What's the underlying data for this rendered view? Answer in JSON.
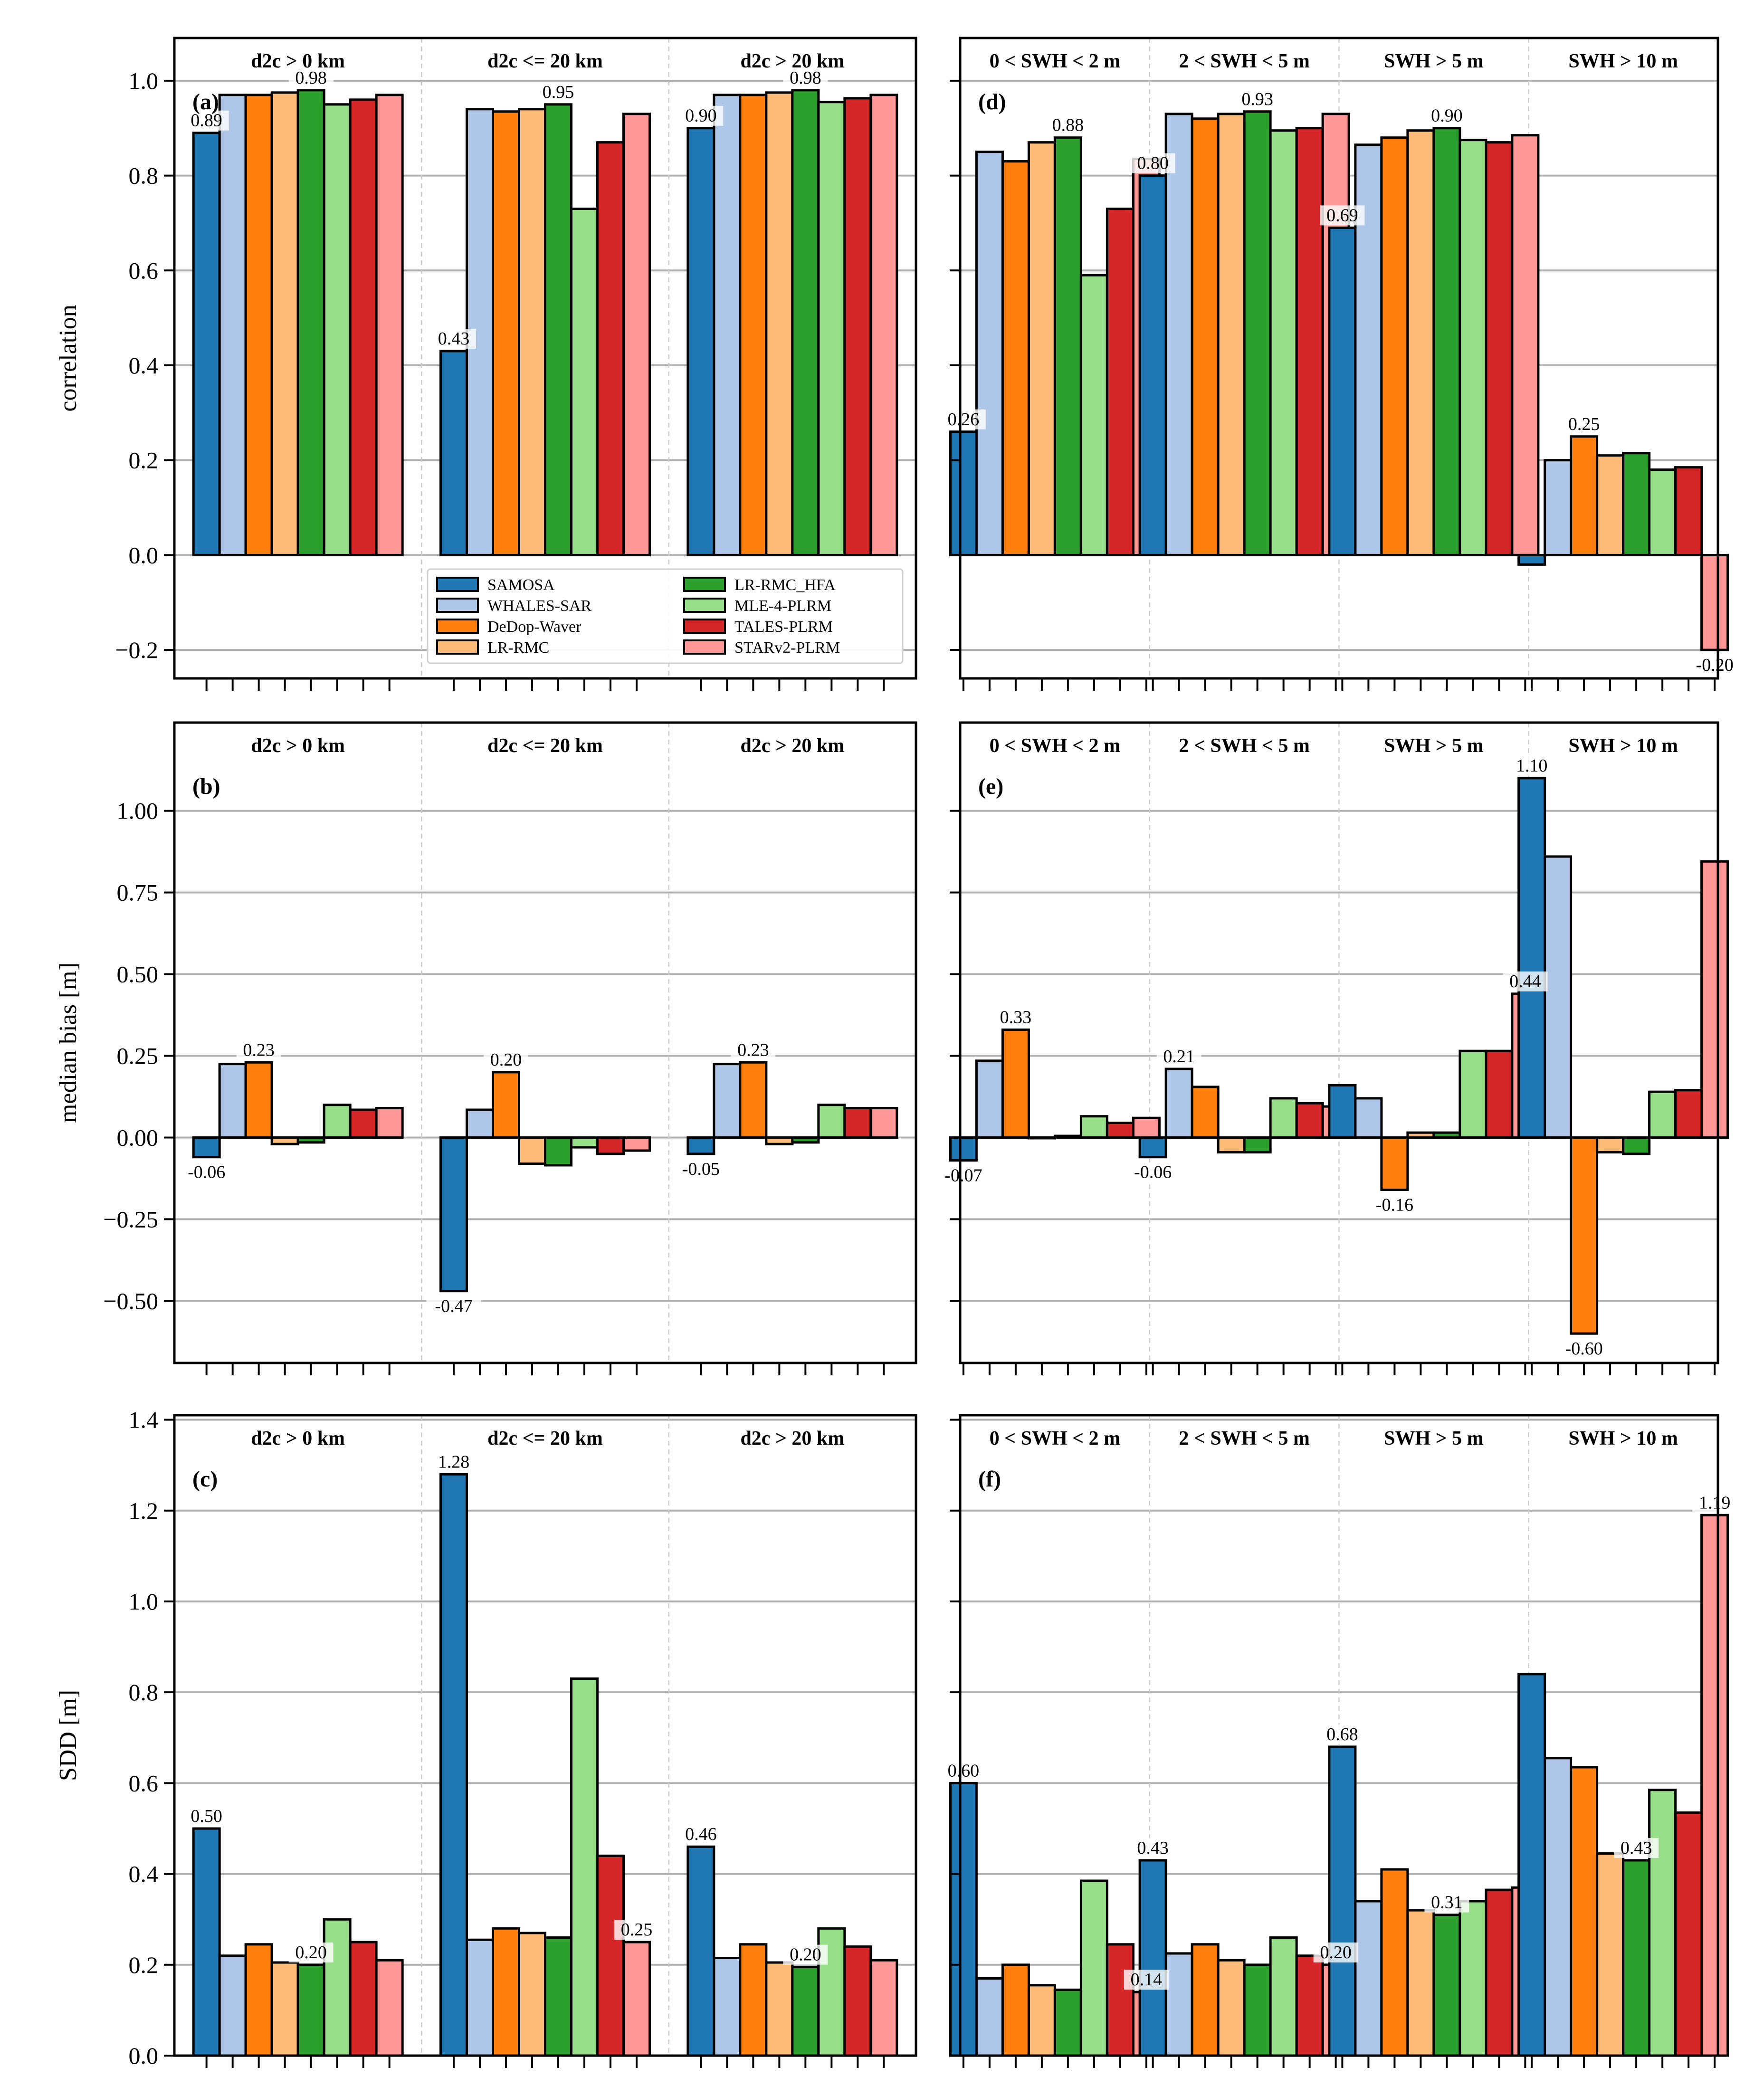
{
  "series_names": [
    "SAMOSA",
    "WHALES-SAR",
    "DeDop-Waver",
    "LR-RMC",
    "LR-RMC_HFA",
    "MLE-4-PLRM",
    "TALES-PLRM",
    "STARv2-PLRM"
  ],
  "series_colors": [
    "#1f77b4",
    "#aec7e8",
    "#ff7f0e",
    "#ffbb78",
    "#2ca02c",
    "#98df8a",
    "#d62728",
    "#ff9896"
  ],
  "chart_data": [
    {
      "id": "a",
      "type": "bar",
      "panel_label": "(a)",
      "ylabel": "correlation",
      "ylim": [
        -0.26,
        1.09
      ],
      "yticks": [
        -0.2,
        0,
        0.2,
        0.4,
        0.6,
        0.8,
        1.0
      ],
      "ytick_labels": [
        "−0.2",
        "0.0",
        "0.2",
        "0.4",
        "0.6",
        "0.8",
        "1.0"
      ],
      "categories": [
        "d2c > 0 km",
        "d2c <= 20 km",
        "d2c > 20 km"
      ],
      "values": [
        [
          0.89,
          0.97,
          0.97,
          0.975,
          0.98,
          0.95,
          0.96,
          0.97
        ],
        [
          0.43,
          0.94,
          0.935,
          0.94,
          0.95,
          0.73,
          0.87,
          0.93
        ],
        [
          0.9,
          0.97,
          0.97,
          0.975,
          0.98,
          0.955,
          0.963,
          0.97
        ]
      ],
      "labels": [
        {
          "g": 0,
          "s": 0,
          "text": "0.89"
        },
        {
          "g": 0,
          "s": 4,
          "text": "0.98"
        },
        {
          "g": 1,
          "s": 0,
          "text": "0.43"
        },
        {
          "g": 1,
          "s": 4,
          "text": "0.95"
        },
        {
          "g": 2,
          "s": 0,
          "text": "0.90"
        },
        {
          "g": 2,
          "s": 4,
          "text": "0.98"
        }
      ],
      "legend": true
    },
    {
      "id": "d",
      "type": "bar",
      "panel_label": "(d)",
      "ylabel": "",
      "ylim": [
        -0.26,
        1.09
      ],
      "yticks": [
        -0.2,
        0,
        0.2,
        0.4,
        0.6,
        0.8,
        1.0
      ],
      "ytick_labels": [],
      "categories": [
        "0 < SWH < 2 m",
        "2 < SWH < 5 m",
        "SWH > 5 m",
        "SWH > 10 m"
      ],
      "values": [
        [
          0.26,
          0.85,
          0.83,
          0.87,
          0.88,
          0.59,
          0.73,
          0.835
        ],
        [
          0.8,
          0.93,
          0.92,
          0.93,
          0.935,
          0.895,
          0.9,
          0.93
        ],
        [
          0.69,
          0.865,
          0.88,
          0.895,
          0.9,
          0.875,
          0.87,
          0.885
        ],
        [
          -0.02,
          0.2,
          0.25,
          0.21,
          0.215,
          0.18,
          0.185,
          -0.2
        ]
      ],
      "labels": [
        {
          "g": 0,
          "s": 0,
          "text": "0.26"
        },
        {
          "g": 0,
          "s": 4,
          "text": "0.88"
        },
        {
          "g": 1,
          "s": 0,
          "text": "0.80"
        },
        {
          "g": 1,
          "s": 4,
          "text": "0.93"
        },
        {
          "g": 2,
          "s": 0,
          "text": "0.69"
        },
        {
          "g": 2,
          "s": 4,
          "text": "0.90"
        },
        {
          "g": 3,
          "s": 2,
          "text": "0.25"
        },
        {
          "g": 3,
          "s": 7,
          "text": "-0.20"
        }
      ],
      "legend": false
    },
    {
      "id": "b",
      "type": "bar",
      "panel_label": "(b)",
      "ylabel": "median bias [m]",
      "ylim": [
        -0.69,
        1.27
      ],
      "yticks": [
        -0.5,
        -0.25,
        0,
        0.25,
        0.5,
        0.75,
        1.0
      ],
      "ytick_labels": [
        "−0.50",
        "−0.25",
        "0.00",
        "0.25",
        "0.50",
        "0.75",
        "1.00"
      ],
      "categories": [
        "d2c > 0 km",
        "d2c <= 20 km",
        "d2c > 20 km"
      ],
      "values": [
        [
          -0.06,
          0.225,
          0.23,
          -0.02,
          -0.015,
          0.1,
          0.085,
          0.09
        ],
        [
          -0.47,
          0.085,
          0.2,
          -0.08,
          -0.085,
          -0.03,
          -0.05,
          -0.04
        ],
        [
          -0.05,
          0.225,
          0.23,
          -0.02,
          -0.015,
          0.1,
          0.09,
          0.09
        ]
      ],
      "labels": [
        {
          "g": 0,
          "s": 0,
          "text": "-0.06"
        },
        {
          "g": 0,
          "s": 2,
          "text": "0.23"
        },
        {
          "g": 1,
          "s": 0,
          "text": "-0.47"
        },
        {
          "g": 1,
          "s": 2,
          "text": "0.20"
        },
        {
          "g": 2,
          "s": 0,
          "text": "-0.05"
        },
        {
          "g": 2,
          "s": 2,
          "text": "0.23"
        }
      ],
      "legend": false
    },
    {
      "id": "e",
      "type": "bar",
      "panel_label": "(e)",
      "ylabel": "",
      "ylim": [
        -0.69,
        1.27
      ],
      "yticks": [
        -0.5,
        -0.25,
        0,
        0.25,
        0.5,
        0.75,
        1.0
      ],
      "ytick_labels": [],
      "categories": [
        "0 < SWH < 2 m",
        "2 < SWH < 5 m",
        "SWH > 5 m",
        "SWH > 10 m"
      ],
      "values": [
        [
          -0.07,
          0.235,
          0.33,
          0.0,
          0.005,
          0.065,
          0.045,
          0.06
        ],
        [
          -0.06,
          0.21,
          0.155,
          -0.045,
          -0.045,
          0.12,
          0.105,
          0.095
        ],
        [
          0.16,
          0.12,
          -0.16,
          0.015,
          0.015,
          0.265,
          0.265,
          0.44
        ],
        [
          1.1,
          0.86,
          -0.6,
          -0.045,
          -0.05,
          0.14,
          0.145,
          0.845
        ]
      ],
      "labels": [
        {
          "g": 0,
          "s": 0,
          "text": "-0.07"
        },
        {
          "g": 0,
          "s": 2,
          "text": "0.33"
        },
        {
          "g": 1,
          "s": 0,
          "text": "-0.06"
        },
        {
          "g": 1,
          "s": 1,
          "text": "0.21"
        },
        {
          "g": 2,
          "s": 2,
          "text": "-0.16"
        },
        {
          "g": 2,
          "s": 7,
          "text": "0.44"
        },
        {
          "g": 3,
          "s": 0,
          "text": "1.10"
        },
        {
          "g": 3,
          "s": 2,
          "text": "-0.60"
        }
      ],
      "legend": false
    },
    {
      "id": "c",
      "type": "bar",
      "panel_label": "(c)",
      "ylabel": "SDD [m]",
      "ylim": [
        0,
        1.41
      ],
      "yticks": [
        0,
        0.2,
        0.4,
        0.6,
        0.8,
        1.0,
        1.2,
        1.4
      ],
      "ytick_labels": [
        "0.0",
        "0.2",
        "0.4",
        "0.6",
        "0.8",
        "1.0",
        "1.2",
        "1.4"
      ],
      "categories": [
        "d2c > 0 km",
        "d2c <= 20 km",
        "d2c > 20 km"
      ],
      "values": [
        [
          0.5,
          0.22,
          0.245,
          0.205,
          0.2,
          0.3,
          0.25,
          0.21
        ],
        [
          1.28,
          0.255,
          0.28,
          0.27,
          0.26,
          0.83,
          0.44,
          0.25
        ],
        [
          0.46,
          0.215,
          0.245,
          0.205,
          0.195,
          0.28,
          0.24,
          0.21
        ]
      ],
      "labels": [
        {
          "g": 0,
          "s": 0,
          "text": "0.50"
        },
        {
          "g": 0,
          "s": 4,
          "text": "0.20"
        },
        {
          "g": 1,
          "s": 0,
          "text": "1.28"
        },
        {
          "g": 1,
          "s": 7,
          "text": "0.25"
        },
        {
          "g": 2,
          "s": 0,
          "text": "0.46"
        },
        {
          "g": 2,
          "s": 4,
          "text": "0.20"
        }
      ],
      "legend": false
    },
    {
      "id": "f",
      "type": "bar",
      "panel_label": "(f)",
      "ylabel": "",
      "ylim": [
        0,
        1.41
      ],
      "yticks": [
        0,
        0.2,
        0.4,
        0.6,
        0.8,
        1.0,
        1.2,
        1.4
      ],
      "ytick_labels": [],
      "categories": [
        "0 < SWH < 2 m",
        "2 < SWH < 5 m",
        "SWH > 5 m",
        "SWH > 10 m"
      ],
      "values": [
        [
          0.6,
          0.17,
          0.2,
          0.155,
          0.145,
          0.385,
          0.245,
          0.14
        ],
        [
          0.43,
          0.225,
          0.245,
          0.21,
          0.2,
          0.26,
          0.22,
          0.2
        ],
        [
          0.68,
          0.34,
          0.41,
          0.32,
          0.31,
          0.34,
          0.365,
          0.37
        ],
        [
          0.84,
          0.655,
          0.635,
          0.445,
          0.43,
          0.585,
          0.535,
          1.19
        ]
      ],
      "labels": [
        {
          "g": 0,
          "s": 0,
          "text": "0.60"
        },
        {
          "g": 0,
          "s": 7,
          "text": "0.14"
        },
        {
          "g": 1,
          "s": 0,
          "text": "0.43"
        },
        {
          "g": 1,
          "s": 7,
          "text": "0.20"
        },
        {
          "g": 2,
          "s": 0,
          "text": "0.68"
        },
        {
          "g": 2,
          "s": 4,
          "text": "0.31"
        },
        {
          "g": 3,
          "s": 4,
          "text": "0.43"
        },
        {
          "g": 3,
          "s": 7,
          "text": "1.19"
        }
      ],
      "legend": false
    }
  ]
}
